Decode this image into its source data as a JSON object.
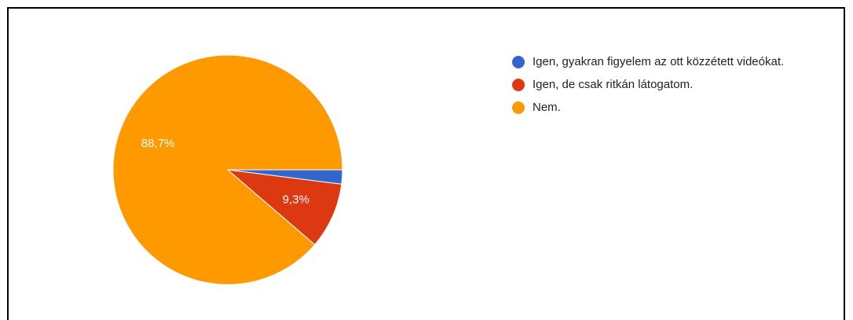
{
  "chart_data": {
    "type": "pie",
    "categories": [
      "Igen, gyakran figyelem az ott közzétett videókat.",
      "Igen, de csak ritkán látogatom.",
      "Nem."
    ],
    "values": [
      2.0,
      9.3,
      88.7
    ],
    "value_labels": [
      null,
      "9,3%",
      "88,7%"
    ],
    "colors": [
      "#3366cc",
      "#dc3912",
      "#ff9900"
    ],
    "legend": "right"
  }
}
